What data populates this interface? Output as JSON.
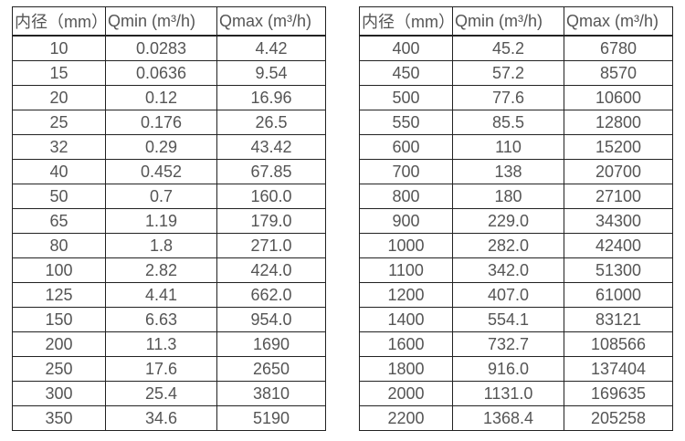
{
  "colors": {
    "background": "#ffffff",
    "border": "#222222",
    "text": "#555555"
  },
  "chart_data": [
    {
      "type": "table",
      "name": "flow-rates-small-diameters",
      "columns": [
        "内径（mm）",
        "Qmin (m³/h)",
        "Qmax (m³/h)"
      ],
      "rows": [
        [
          "10",
          "0.0283",
          "4.42"
        ],
        [
          "15",
          "0.0636",
          "9.54"
        ],
        [
          "20",
          "0.12",
          "16.96"
        ],
        [
          "25",
          "0.176",
          "26.5"
        ],
        [
          "32",
          "0.29",
          "43.42"
        ],
        [
          "40",
          "0.452",
          "67.85"
        ],
        [
          "50",
          "0.7",
          "160.0"
        ],
        [
          "65",
          "1.19",
          "179.0"
        ],
        [
          "80",
          "1.8",
          "271.0"
        ],
        [
          "100",
          "2.82",
          "424.0"
        ],
        [
          "125",
          "4.41",
          "662.0"
        ],
        [
          "150",
          "6.63",
          "954.0"
        ],
        [
          "200",
          "11.3",
          "1690"
        ],
        [
          "250",
          "17.6",
          "2650"
        ],
        [
          "300",
          "25.4",
          "3810"
        ],
        [
          "350",
          "34.6",
          "5190"
        ]
      ]
    },
    {
      "type": "table",
      "name": "flow-rates-large-diameters",
      "columns": [
        "内径（mm）",
        "Qmin (m³/h)",
        "Qmax (m³/h)"
      ],
      "rows": [
        [
          "400",
          "45.2",
          "6780"
        ],
        [
          "450",
          "57.2",
          "8570"
        ],
        [
          "500",
          "77.6",
          "10600"
        ],
        [
          "550",
          "85.5",
          "12800"
        ],
        [
          "600",
          "110",
          "15200"
        ],
        [
          "700",
          "138",
          "20700"
        ],
        [
          "800",
          "180",
          "27100"
        ],
        [
          "900",
          "229.0",
          "34300"
        ],
        [
          "1000",
          "282.0",
          "42400"
        ],
        [
          "1100",
          "342.0",
          "51300"
        ],
        [
          "1200",
          "407.0",
          "61000"
        ],
        [
          "1400",
          "554.1",
          "83121"
        ],
        [
          "1600",
          "732.7",
          "108566"
        ],
        [
          "1800",
          "916.0",
          "137404"
        ],
        [
          "2000",
          "1131.0",
          "169635"
        ],
        [
          "2200",
          "1368.4",
          "205258"
        ]
      ]
    }
  ]
}
